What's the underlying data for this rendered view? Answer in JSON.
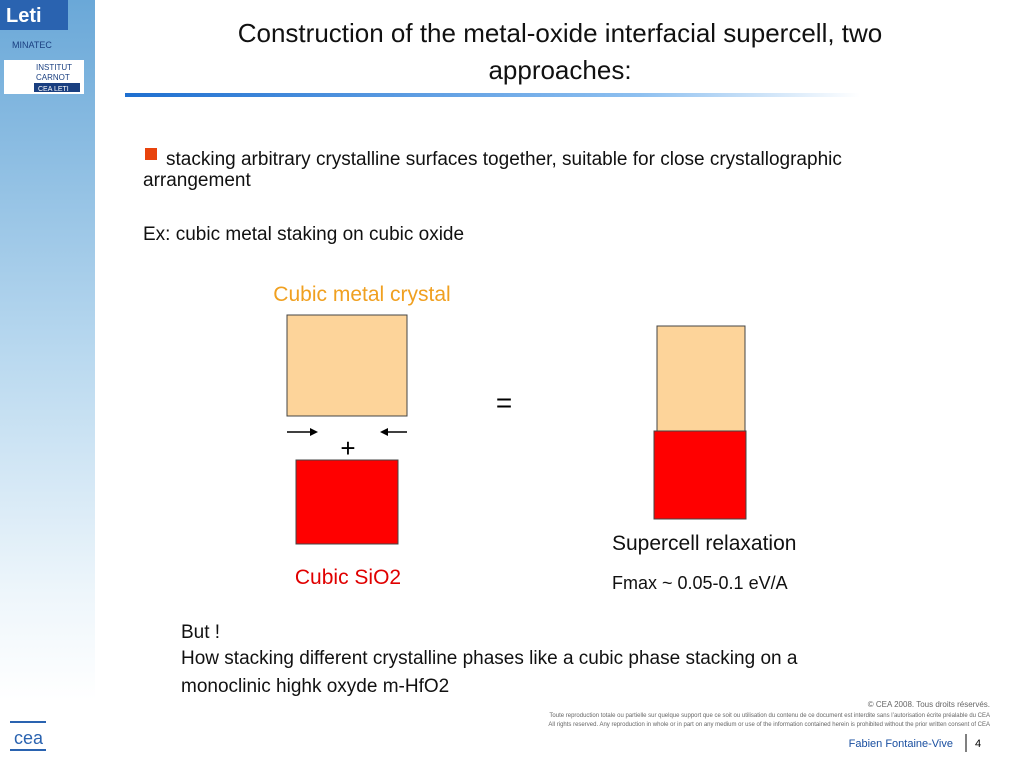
{
  "logos": {
    "leti": "Leti",
    "minatec": "MINATEC",
    "institut": "INSTITUT",
    "carnot": "CARNOT",
    "cea_leti": "CEA LETI",
    "cea": "cea"
  },
  "header": {
    "title_line1": "Construction of the metal-oxide interfacial supercell, two",
    "title_line2": "approaches:"
  },
  "body": {
    "bullet_line1": "stacking arbitrary crystalline surfaces together, suitable for close crystallographic",
    "bullet_line2": "arrangement",
    "example": "Ex: cubic metal staking on cubic oxide"
  },
  "diagram": {
    "metal_label": "Cubic metal crystal",
    "plus": "+",
    "equals": "=",
    "oxide_label": "Cubic SiO2",
    "result_label": "Supercell relaxation",
    "fmax": "Fmax ~ 0.05-0.1 eV/A"
  },
  "note": {
    "line1": "But !",
    "line2": "How stacking different crystalline phases like a cubic phase stacking on a",
    "line3": "monoclinic highk oxyde m-HfO2"
  },
  "footer": {
    "copyright": "© CEA 2008. Tous droits réservés.",
    "legal_fr": "Toute reproduction totale ou partielle sur quelque support que ce soit ou utilisation du contenu de ce document est interdite sans l’autorisation écrite préalable du CEA",
    "legal_en": "All rights reserved. Any reproduction in whole or in part on any medium or use of the information contained herein is prohibited without the prior written consent of CEA",
    "author": "Fabien Fontaine-Vive",
    "page": "4"
  }
}
